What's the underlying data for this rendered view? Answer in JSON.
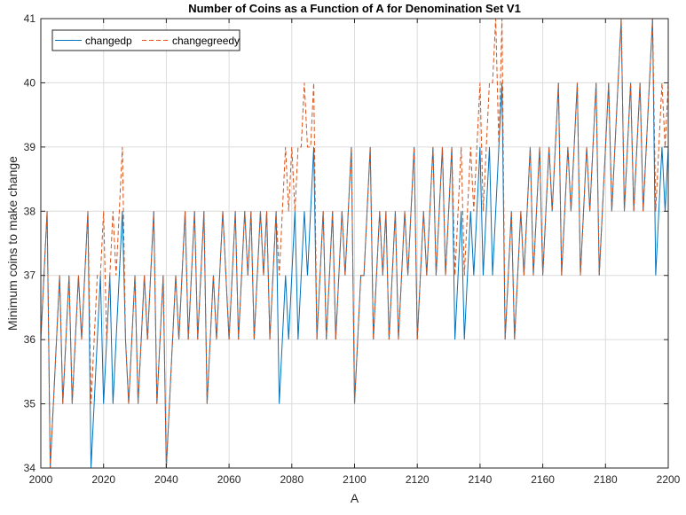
{
  "chart_data": {
    "type": "line",
    "title": "Number of Coins as a Function of A for Denomination Set V1",
    "xlabel": "A",
    "ylabel": "Minimum coins to make change",
    "xlim": [
      2000,
      2200
    ],
    "ylim": [
      34,
      41
    ],
    "xticks": [
      2000,
      2020,
      2040,
      2060,
      2080,
      2100,
      2120,
      2140,
      2160,
      2180,
      2200
    ],
    "yticks": [
      34,
      35,
      36,
      37,
      38,
      39,
      40,
      41
    ],
    "grid": true,
    "legend_position": "top-left",
    "series": [
      {
        "name": "changedp",
        "color": "#0072BD",
        "line_style": "solid",
        "x": [
          2000,
          2001,
          2002,
          2003,
          2004,
          2005,
          2006,
          2007,
          2008,
          2009,
          2010,
          2011,
          2012,
          2013,
          2014,
          2015,
          2016,
          2017,
          2018,
          2019,
          2020,
          2021,
          2022,
          2023,
          2024,
          2025,
          2026,
          2027,
          2028,
          2029,
          2030,
          2031,
          2032,
          2033,
          2034,
          2035,
          2036,
          2037,
          2038,
          2039,
          2040,
          2041,
          2042,
          2043,
          2044,
          2045,
          2046,
          2047,
          2048,
          2049,
          2050,
          2051,
          2052,
          2053,
          2054,
          2055,
          2056,
          2057,
          2058,
          2059,
          2060,
          2061,
          2062,
          2063,
          2064,
          2065,
          2066,
          2067,
          2068,
          2069,
          2070,
          2071,
          2072,
          2073,
          2074,
          2075,
          2076,
          2077,
          2078,
          2079,
          2080,
          2081,
          2082,
          2083,
          2084,
          2085,
          2086,
          2087,
          2088,
          2089,
          2090,
          2091,
          2092,
          2093,
          2094,
          2095,
          2096,
          2097,
          2098,
          2099,
          2100,
          2101,
          2102,
          2103,
          2104,
          2105,
          2106,
          2107,
          2108,
          2109,
          2110,
          2111,
          2112,
          2113,
          2114,
          2115,
          2116,
          2117,
          2118,
          2119,
          2120,
          2121,
          2122,
          2123,
          2124,
          2125,
          2126,
          2127,
          2128,
          2129,
          2130,
          2131,
          2132,
          2133,
          2134,
          2135,
          2136,
          2137,
          2138,
          2139,
          2140,
          2141,
          2142,
          2143,
          2144,
          2145,
          2146,
          2147,
          2148,
          2149,
          2150,
          2151,
          2152,
          2153,
          2154,
          2155,
          2156,
          2157,
          2158,
          2159,
          2160,
          2161,
          2162,
          2163,
          2164,
          2165,
          2166,
          2167,
          2168,
          2169,
          2170,
          2171,
          2172,
          2173,
          2174,
          2175,
          2176,
          2177,
          2178,
          2179,
          2180,
          2181,
          2182,
          2183,
          2184,
          2185,
          2186,
          2187,
          2188,
          2189,
          2190,
          2191,
          2192,
          2193,
          2194,
          2195,
          2196,
          2197,
          2198,
          2199,
          2200
        ],
        "y": [
          36,
          37,
          38,
          34,
          35,
          36,
          37,
          35,
          36,
          37,
          35,
          36,
          37,
          36,
          37,
          38,
          34,
          35,
          36,
          37,
          35,
          36,
          37,
          35,
          36,
          37,
          38,
          36,
          35,
          36,
          37,
          35,
          36,
          37,
          36,
          37,
          38,
          35,
          36,
          37,
          34,
          35,
          36,
          37,
          36,
          37,
          38,
          36,
          37,
          38,
          36,
          37,
          38,
          35,
          36,
          37,
          36,
          37,
          38,
          37,
          36,
          37,
          38,
          36,
          37,
          38,
          37,
          38,
          36,
          37,
          38,
          37,
          38,
          36,
          37,
          38,
          35,
          36,
          37,
          36,
          37,
          38,
          36,
          37,
          38,
          37,
          38,
          39,
          36,
          37,
          38,
          36,
          37,
          38,
          36,
          37,
          38,
          37,
          38,
          39,
          35,
          36,
          37,
          37,
          38,
          39,
          36,
          37,
          38,
          37,
          38,
          36,
          37,
          38,
          36,
          37,
          38,
          37,
          38,
          39,
          36,
          37,
          38,
          37,
          38,
          39,
          37,
          38,
          39,
          37,
          38,
          39,
          36,
          37,
          38,
          36,
          37,
          38,
          37,
          38,
          39,
          37,
          38,
          39,
          37,
          38,
          39,
          40,
          36,
          37,
          38,
          36,
          37,
          38,
          37,
          38,
          39,
          37,
          38,
          39,
          37,
          38,
          39,
          38,
          39,
          40,
          37,
          38,
          39,
          38,
          39,
          40,
          37,
          38,
          39,
          38,
          39,
          40,
          37,
          38,
          39,
          40,
          38,
          39,
          40,
          41,
          38,
          39,
          40,
          38,
          39,
          40,
          38,
          39,
          40,
          41,
          37,
          38,
          39,
          38,
          39
        ]
      },
      {
        "name": "changegreedy",
        "color": "#D95319",
        "line_style": "dashed",
        "x": [
          2000,
          2001,
          2002,
          2003,
          2004,
          2005,
          2006,
          2007,
          2008,
          2009,
          2010,
          2011,
          2012,
          2013,
          2014,
          2015,
          2016,
          2017,
          2018,
          2019,
          2020,
          2021,
          2022,
          2023,
          2024,
          2025,
          2026,
          2027,
          2028,
          2029,
          2030,
          2031,
          2032,
          2033,
          2034,
          2035,
          2036,
          2037,
          2038,
          2039,
          2040,
          2041,
          2042,
          2043,
          2044,
          2045,
          2046,
          2047,
          2048,
          2049,
          2050,
          2051,
          2052,
          2053,
          2054,
          2055,
          2056,
          2057,
          2058,
          2059,
          2060,
          2061,
          2062,
          2063,
          2064,
          2065,
          2066,
          2067,
          2068,
          2069,
          2070,
          2071,
          2072,
          2073,
          2074,
          2075,
          2076,
          2077,
          2078,
          2079,
          2080,
          2081,
          2082,
          2083,
          2084,
          2085,
          2086,
          2087,
          2088,
          2089,
          2090,
          2091,
          2092,
          2093,
          2094,
          2095,
          2096,
          2097,
          2098,
          2099,
          2100,
          2101,
          2102,
          2103,
          2104,
          2105,
          2106,
          2107,
          2108,
          2109,
          2110,
          2111,
          2112,
          2113,
          2114,
          2115,
          2116,
          2117,
          2118,
          2119,
          2120,
          2121,
          2122,
          2123,
          2124,
          2125,
          2126,
          2127,
          2128,
          2129,
          2130,
          2131,
          2132,
          2133,
          2134,
          2135,
          2136,
          2137,
          2138,
          2139,
          2140,
          2141,
          2142,
          2143,
          2144,
          2145,
          2146,
          2147,
          2148,
          2149,
          2150,
          2151,
          2152,
          2153,
          2154,
          2155,
          2156,
          2157,
          2158,
          2159,
          2160,
          2161,
          2162,
          2163,
          2164,
          2165,
          2166,
          2167,
          2168,
          2169,
          2170,
          2171,
          2172,
          2173,
          2174,
          2175,
          2176,
          2177,
          2178,
          2179,
          2180,
          2181,
          2182,
          2183,
          2184,
          2185,
          2186,
          2187,
          2188,
          2189,
          2190,
          2191,
          2192,
          2193,
          2194,
          2195,
          2196,
          2197,
          2198,
          2199,
          2200
        ],
        "y": [
          36,
          37,
          38,
          34,
          35,
          36,
          37,
          35,
          36,
          37,
          35,
          36,
          37,
          36,
          37,
          38,
          35,
          36,
          37,
          37,
          38,
          36,
          37,
          38,
          37,
          38,
          39,
          36,
          35,
          36,
          37,
          35,
          36,
          37,
          36,
          37,
          38,
          35,
          36,
          37,
          34,
          35,
          36,
          37,
          36,
          37,
          38,
          36,
          37,
          38,
          36,
          37,
          38,
          35,
          36,
          37,
          36,
          37,
          38,
          37,
          36,
          37,
          38,
          36,
          37,
          38,
          37,
          38,
          36,
          37,
          38,
          37,
          38,
          36,
          37,
          38,
          37,
          38,
          39,
          38,
          39,
          38,
          39,
          39,
          40,
          39,
          39,
          40,
          36,
          37,
          38,
          36,
          37,
          38,
          36,
          37,
          38,
          37,
          38,
          39,
          35,
          36,
          37,
          37,
          38,
          39,
          36,
          37,
          38,
          37,
          38,
          36,
          37,
          38,
          36,
          37,
          38,
          37,
          38,
          39,
          36,
          37,
          38,
          37,
          38,
          39,
          37,
          38,
          39,
          37,
          38,
          39,
          37,
          38,
          39,
          37,
          38,
          39,
          38,
          39,
          40,
          38,
          39,
          40,
          40,
          41,
          39,
          41,
          36,
          37,
          38,
          36,
          37,
          38,
          37,
          38,
          39,
          37,
          38,
          39,
          37,
          38,
          39,
          38,
          39,
          40,
          37,
          38,
          39,
          38,
          39,
          40,
          37,
          38,
          39,
          38,
          39,
          40,
          37,
          38,
          39,
          40,
          38,
          39,
          40,
          41,
          38,
          39,
          40,
          38,
          39,
          40,
          38,
          39,
          40,
          41,
          38,
          39,
          40,
          39,
          40
        ]
      }
    ]
  }
}
